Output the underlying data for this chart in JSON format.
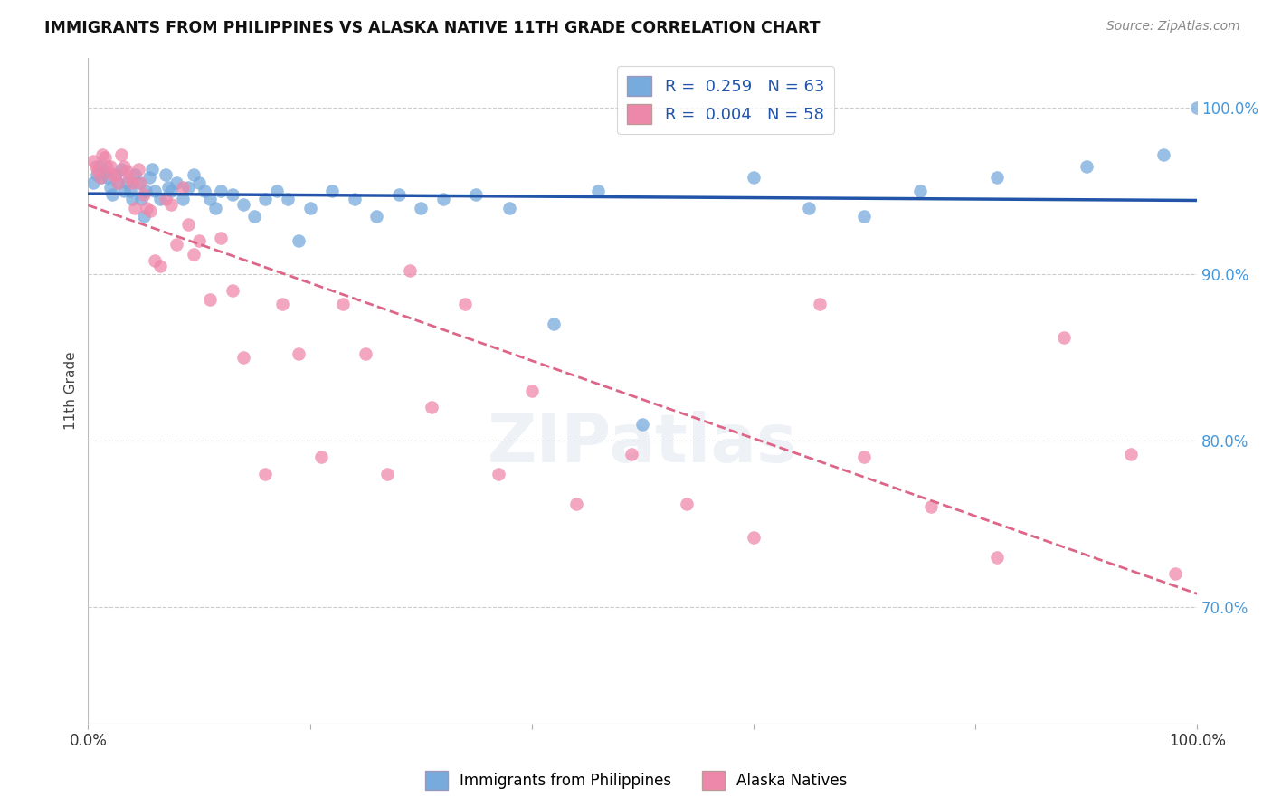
{
  "title": "IMMIGRANTS FROM PHILIPPINES VS ALASKA NATIVE 11TH GRADE CORRELATION CHART",
  "source": "Source: ZipAtlas.com",
  "ylabel": "11th Grade",
  "xlim": [
    0.0,
    1.0
  ],
  "ylim": [
    0.63,
    1.03
  ],
  "x_tick_labels": [
    "0.0%",
    "",
    "",
    "",
    "",
    "100.0%"
  ],
  "x_ticks": [
    0.0,
    0.2,
    0.4,
    0.6,
    0.8,
    1.0
  ],
  "y_tick_labels_right": [
    "70.0%",
    "80.0%",
    "90.0%",
    "100.0%"
  ],
  "y_ticks_right": [
    0.7,
    0.8,
    0.9,
    1.0
  ],
  "grid_color": "#cccccc",
  "background_color": "#ffffff",
  "blue_color": "#77aadd",
  "pink_color": "#ee88aa",
  "blue_line_color": "#2255aa",
  "pink_line_color": "#dd6688",
  "legend_R_blue": "0.259",
  "legend_N_blue": "63",
  "legend_R_pink": "0.004",
  "legend_N_pink": "58",
  "blue_x": [
    0.005,
    0.008,
    0.01,
    0.012,
    0.015,
    0.018,
    0.02,
    0.022,
    0.025,
    0.027,
    0.03,
    0.032,
    0.035,
    0.038,
    0.04,
    0.042,
    0.045,
    0.048,
    0.05,
    0.052,
    0.055,
    0.058,
    0.06,
    0.065,
    0.07,
    0.072,
    0.075,
    0.08,
    0.085,
    0.09,
    0.095,
    0.1,
    0.105,
    0.11,
    0.115,
    0.12,
    0.13,
    0.14,
    0.15,
    0.16,
    0.17,
    0.18,
    0.19,
    0.2,
    0.22,
    0.24,
    0.26,
    0.28,
    0.3,
    0.32,
    0.35,
    0.38,
    0.42,
    0.46,
    0.5,
    0.6,
    0.65,
    0.7,
    0.75,
    0.82,
    0.9,
    0.97,
    1.0
  ],
  "blue_y": [
    0.955,
    0.96,
    0.965,
    0.958,
    0.962,
    0.958,
    0.952,
    0.948,
    0.96,
    0.955,
    0.963,
    0.95,
    0.955,
    0.95,
    0.945,
    0.96,
    0.955,
    0.945,
    0.935,
    0.95,
    0.958,
    0.963,
    0.95,
    0.945,
    0.96,
    0.952,
    0.95,
    0.955,
    0.945,
    0.952,
    0.96,
    0.955,
    0.95,
    0.945,
    0.94,
    0.95,
    0.948,
    0.942,
    0.935,
    0.945,
    0.95,
    0.945,
    0.92,
    0.94,
    0.95,
    0.945,
    0.935,
    0.948,
    0.94,
    0.945,
    0.948,
    0.94,
    0.87,
    0.95,
    0.81,
    0.958,
    0.94,
    0.935,
    0.95,
    0.958,
    0.965,
    0.972,
    1.0
  ],
  "pink_x": [
    0.005,
    0.007,
    0.009,
    0.011,
    0.013,
    0.015,
    0.017,
    0.02,
    0.022,
    0.025,
    0.027,
    0.03,
    0.032,
    0.035,
    0.037,
    0.04,
    0.042,
    0.045,
    0.047,
    0.05,
    0.053,
    0.056,
    0.06,
    0.065,
    0.07,
    0.075,
    0.08,
    0.085,
    0.09,
    0.095,
    0.1,
    0.11,
    0.12,
    0.13,
    0.14,
    0.16,
    0.175,
    0.19,
    0.21,
    0.23,
    0.25,
    0.27,
    0.29,
    0.31,
    0.34,
    0.37,
    0.4,
    0.44,
    0.49,
    0.54,
    0.6,
    0.66,
    0.7,
    0.76,
    0.82,
    0.88,
    0.94,
    0.98
  ],
  "pink_y": [
    0.968,
    0.965,
    0.962,
    0.958,
    0.972,
    0.97,
    0.965,
    0.965,
    0.96,
    0.96,
    0.955,
    0.972,
    0.965,
    0.962,
    0.958,
    0.955,
    0.94,
    0.963,
    0.955,
    0.948,
    0.94,
    0.938,
    0.908,
    0.905,
    0.945,
    0.942,
    0.918,
    0.952,
    0.93,
    0.912,
    0.92,
    0.885,
    0.922,
    0.89,
    0.85,
    0.78,
    0.882,
    0.852,
    0.79,
    0.882,
    0.852,
    0.78,
    0.902,
    0.82,
    0.882,
    0.78,
    0.83,
    0.762,
    0.792,
    0.762,
    0.742,
    0.882,
    0.79,
    0.76,
    0.73,
    0.862,
    0.792,
    0.72
  ]
}
